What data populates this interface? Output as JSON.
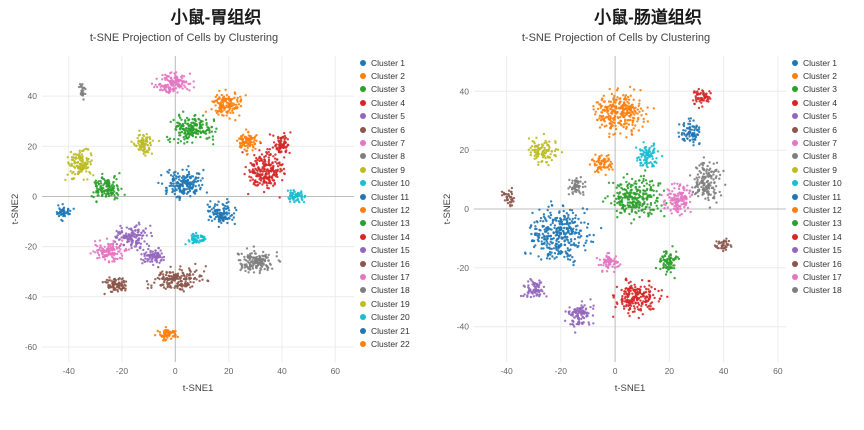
{
  "panels": [
    {
      "title": "小鼠-胃组织",
      "subtitle": "t-SNE Projection of Cells by Clustering"
    },
    {
      "title": "小鼠-肠道组织",
      "subtitle": "t-SNE Projection of Cells by Clustering"
    }
  ],
  "colors": {
    "grid": "#ececec",
    "zero_line": "#bdbdbd",
    "tick_text": "#666666",
    "title_text": "#1a1a1a",
    "subtitle_text": "#444444"
  },
  "chart_data": [
    {
      "type": "scatter",
      "panel_title": "小鼠-胃组织",
      "title": "t-SNE Projection of Cells by Clustering",
      "xlabel": "t-SNE1",
      "ylabel": "t-SNE2",
      "xlim": [
        -50,
        67
      ],
      "ylim": [
        -66,
        56
      ],
      "xticks": [
        -40,
        -20,
        0,
        20,
        40,
        60
      ],
      "yticks": [
        -60,
        -40,
        -20,
        0,
        20,
        40
      ],
      "grid": true,
      "legend_position": "right",
      "point_style": {
        "radius": 1.2,
        "opacity": 0.9
      },
      "series": [
        {
          "name": "Cluster 1",
          "color": "#1f77b4",
          "center": [
            3,
            5
          ],
          "spread": [
            6,
            5
          ],
          "n": 180
        },
        {
          "name": "Cluster 2",
          "color": "#ff7f0e",
          "center": [
            19,
            37
          ],
          "spread": [
            5,
            4
          ],
          "n": 140
        },
        {
          "name": "Cluster 3",
          "color": "#2ca02c",
          "center": [
            6,
            27
          ],
          "spread": [
            7,
            5
          ],
          "n": 200
        },
        {
          "name": "Cluster 4",
          "color": "#d62728",
          "center": [
            34,
            10
          ],
          "spread": [
            6,
            7
          ],
          "n": 220
        },
        {
          "name": "Cluster 5",
          "color": "#9467bd",
          "center": [
            -16,
            -16
          ],
          "spread": [
            5,
            4
          ],
          "n": 130
        },
        {
          "name": "Cluster 6",
          "color": "#8c564b",
          "center": [
            1,
            -33
          ],
          "spread": [
            8,
            4
          ],
          "n": 180
        },
        {
          "name": "Cluster 7",
          "color": "#e377c2",
          "center": [
            -1,
            45
          ],
          "spread": [
            6,
            3.5
          ],
          "n": 140
        },
        {
          "name": "Cluster 8",
          "color": "#7f7f7f",
          "center": [
            30,
            -26
          ],
          "spread": [
            6,
            4
          ],
          "n": 160
        },
        {
          "name": "Cluster 9",
          "color": "#bcbd22",
          "center": [
            -36,
            13
          ],
          "spread": [
            4,
            5
          ],
          "n": 130
        },
        {
          "name": "Cluster 10",
          "color": "#17becf",
          "center": [
            45,
            0
          ],
          "spread": [
            3,
            2.5
          ],
          "n": 60
        },
        {
          "name": "Cluster 11",
          "color": "#1f77b4",
          "center": [
            17,
            -7
          ],
          "spread": [
            4,
            4
          ],
          "n": 110
        },
        {
          "name": "Cluster 12",
          "color": "#ff7f0e",
          "center": [
            27,
            22
          ],
          "spread": [
            3.5,
            3.5
          ],
          "n": 90
        },
        {
          "name": "Cluster 13",
          "color": "#2ca02c",
          "center": [
            -26,
            3
          ],
          "spread": [
            5,
            4
          ],
          "n": 130
        },
        {
          "name": "Cluster 14",
          "color": "#d62728",
          "center": [
            40,
            21
          ],
          "spread": [
            3,
            3.5
          ],
          "n": 70
        },
        {
          "name": "Cluster 15",
          "color": "#9467bd",
          "center": [
            -8,
            -24
          ],
          "spread": [
            4,
            3
          ],
          "n": 80
        },
        {
          "name": "Cluster 16",
          "color": "#8c564b",
          "center": [
            -22,
            -35
          ],
          "spread": [
            4,
            3
          ],
          "n": 90
        },
        {
          "name": "Cluster 17",
          "color": "#e377c2",
          "center": [
            -25,
            -22
          ],
          "spread": [
            5,
            3.5
          ],
          "n": 120
        },
        {
          "name": "Cluster 18",
          "color": "#7f7f7f",
          "center": [
            -35,
            42
          ],
          "spread": [
            1.2,
            2.5
          ],
          "n": 25
        },
        {
          "name": "Cluster 19",
          "color": "#bcbd22",
          "center": [
            -12,
            21
          ],
          "spread": [
            3.5,
            3.5
          ],
          "n": 80
        },
        {
          "name": "Cluster 20",
          "color": "#17becf",
          "center": [
            8,
            -17
          ],
          "spread": [
            3,
            2.5
          ],
          "n": 55
        },
        {
          "name": "Cluster 21",
          "color": "#1f77b4",
          "center": [
            -42,
            -6
          ],
          "spread": [
            2.5,
            2.5
          ],
          "n": 45
        },
        {
          "name": "Cluster 22",
          "color": "#ff7f0e",
          "center": [
            -3,
            -55
          ],
          "spread": [
            3.5,
            2
          ],
          "n": 60
        }
      ]
    },
    {
      "type": "scatter",
      "panel_title": "小鼠-肠道组织",
      "title": "t-SNE Projection of Cells by Clustering",
      "xlabel": "t-SNE1",
      "ylabel": "t-SNE2",
      "xlim": [
        -52,
        63
      ],
      "ylim": [
        -52,
        52
      ],
      "xticks": [
        -40,
        -20,
        0,
        20,
        40,
        60
      ],
      "yticks": [
        -40,
        -20,
        0,
        20,
        40
      ],
      "grid": true,
      "legend_position": "right",
      "point_style": {
        "radius": 1.2,
        "opacity": 0.9
      },
      "series": [
        {
          "name": "Cluster 1",
          "color": "#1f77b4",
          "center": [
            -20,
            -8
          ],
          "spread": [
            9,
            8
          ],
          "n": 340
        },
        {
          "name": "Cluster 2",
          "color": "#ff7f0e",
          "center": [
            2,
            33
          ],
          "spread": [
            8,
            6
          ],
          "n": 280
        },
        {
          "name": "Cluster 3",
          "color": "#2ca02c",
          "center": [
            8,
            4
          ],
          "spread": [
            8,
            6
          ],
          "n": 260
        },
        {
          "name": "Cluster 4",
          "color": "#d62728",
          "center": [
            8,
            -30
          ],
          "spread": [
            7,
            5
          ],
          "n": 200
        },
        {
          "name": "Cluster 5",
          "color": "#9467bd",
          "center": [
            -13,
            -36
          ],
          "spread": [
            5,
            3.5
          ],
          "n": 110
        },
        {
          "name": "Cluster 6",
          "color": "#8c564b",
          "center": [
            40,
            -12
          ],
          "spread": [
            2.5,
            2
          ],
          "n": 40
        },
        {
          "name": "Cluster 7",
          "color": "#e377c2",
          "center": [
            23,
            3
          ],
          "spread": [
            4.5,
            4.5
          ],
          "n": 130
        },
        {
          "name": "Cluster 8",
          "color": "#7f7f7f",
          "center": [
            34,
            9
          ],
          "spread": [
            4.5,
            5.5
          ],
          "n": 150
        },
        {
          "name": "Cluster 9",
          "color": "#bcbd22",
          "center": [
            -27,
            20
          ],
          "spread": [
            4.5,
            3.5
          ],
          "n": 100
        },
        {
          "name": "Cluster 10",
          "color": "#17becf",
          "center": [
            12,
            18
          ],
          "spread": [
            3.5,
            3.5
          ],
          "n": 90
        },
        {
          "name": "Cluster 11",
          "color": "#1f77b4",
          "center": [
            28,
            26
          ],
          "spread": [
            3.5,
            3.5
          ],
          "n": 80
        },
        {
          "name": "Cluster 12",
          "color": "#ff7f0e",
          "center": [
            -5,
            15
          ],
          "spread": [
            3.5,
            3
          ],
          "n": 70
        },
        {
          "name": "Cluster 13",
          "color": "#2ca02c",
          "center": [
            20,
            -18
          ],
          "spread": [
            3.5,
            3.5
          ],
          "n": 80
        },
        {
          "name": "Cluster 14",
          "color": "#d62728",
          "center": [
            32,
            38
          ],
          "spread": [
            3,
            2.5
          ],
          "n": 55
        },
        {
          "name": "Cluster 15",
          "color": "#9467bd",
          "center": [
            -30,
            -27
          ],
          "spread": [
            3.5,
            3
          ],
          "n": 70
        },
        {
          "name": "Cluster 16",
          "color": "#8c564b",
          "center": [
            -39,
            4
          ],
          "spread": [
            2,
            2.5
          ],
          "n": 35
        },
        {
          "name": "Cluster 17",
          "color": "#e377c2",
          "center": [
            -2,
            -18
          ],
          "spread": [
            3.5,
            2.5
          ],
          "n": 60
        },
        {
          "name": "Cluster 18",
          "color": "#7f7f7f",
          "center": [
            -14,
            8
          ],
          "spread": [
            3,
            2.5
          ],
          "n": 55
        }
      ]
    }
  ]
}
